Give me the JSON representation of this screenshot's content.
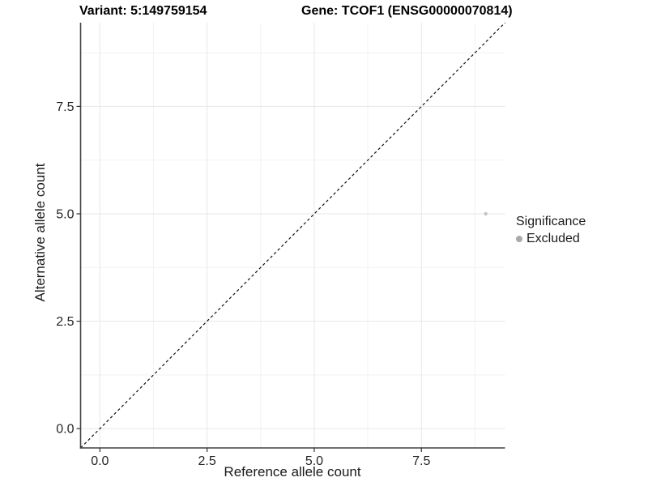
{
  "chart_data": {
    "type": "scatter",
    "titles": {
      "left": "Variant: 5:149759154",
      "right": "Gene: TCOF1 (ENSG00000070814)"
    },
    "xlabel": "Reference allele count",
    "ylabel": "Alternative allele count",
    "xlim": [
      -0.45,
      9.45
    ],
    "ylim": [
      -0.45,
      9.45
    ],
    "x_ticks": {
      "values": [
        0,
        2.5,
        5,
        7.5
      ],
      "labels": [
        "0.0",
        "2.5",
        "5.0",
        "7.5"
      ]
    },
    "y_ticks": {
      "values": [
        0,
        2.5,
        5,
        7.5
      ],
      "labels": [
        "0.0",
        "2.5",
        "5.0",
        "7.5"
      ]
    },
    "minor_ticks": [
      1.25,
      3.75,
      6.25,
      8.75
    ],
    "grid": {
      "show": true,
      "major_color": "#e7e7e7",
      "minor_color": "#f2f2f2"
    },
    "axis": {
      "line_color": "#404040",
      "tick_color": "#333333",
      "tick_label_color": "#262626"
    },
    "identity_line": {
      "type": "abline",
      "slope": 1,
      "intercept": 0,
      "style": "dashed",
      "color": "#111111"
    },
    "series": [
      {
        "name": "Excluded",
        "color": "#c3c3c3",
        "marker": "circle",
        "points": [
          {
            "x": 9,
            "y": 5
          }
        ]
      }
    ],
    "legend": {
      "title": "Significance",
      "position": "right",
      "entries": [
        {
          "label": "Excluded",
          "color": "#a9a9a9",
          "marker": "circle"
        }
      ]
    }
  }
}
